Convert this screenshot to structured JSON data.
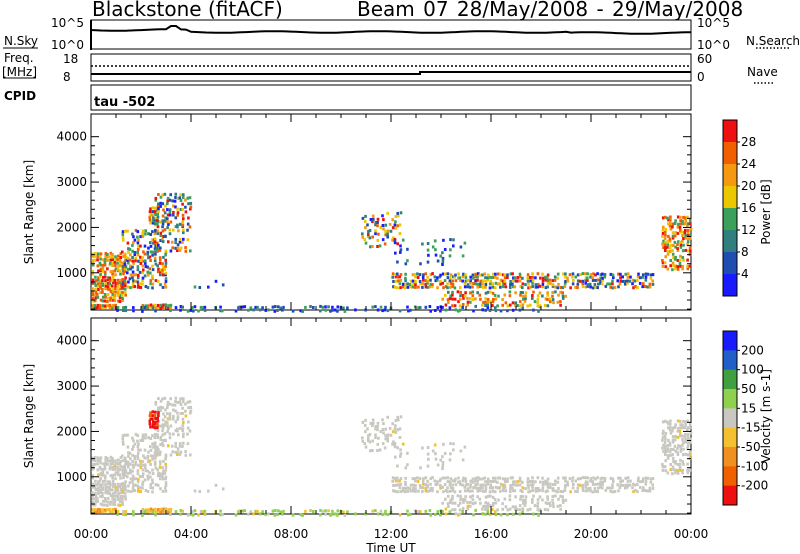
{
  "header": {
    "station": "Blackstone (fitACF)",
    "beam_date": "Beam 07  28/May/2008 - 29/May/2008"
  },
  "top_panels": {
    "nsky_label": "N.Sky",
    "nsky_ticks": [
      "10^5",
      "10^0"
    ],
    "nsearch_label": "N.Search",
    "nsearch_ticks": [
      "10^5",
      "10^0"
    ],
    "freq_label": "Freq.",
    "freq_unit": "[MHz]",
    "freq_ticks": [
      "18",
      "8"
    ],
    "nave_label": "Nave",
    "nave_ticks": [
      "60",
      "0"
    ],
    "cpid_label": "CPID",
    "cpid_value": "tau -502"
  },
  "chart_data": [
    {
      "type": "heatmap",
      "name": "power",
      "ylabel": "Slant Range [km]",
      "xlabel": "Time UT",
      "x_ticks": [
        "00:00",
        "04:00",
        "08:00",
        "12:00",
        "16:00",
        "20:00",
        "00:00"
      ],
      "x_range_hours": [
        0,
        24
      ],
      "ylim": [
        180,
        4500
      ],
      "y_ticks": [
        1000,
        2000,
        3000,
        4000
      ],
      "colorbar_label": "Power [dB]",
      "colorbar_ticks": [
        4,
        8,
        12,
        16,
        20,
        24,
        28
      ],
      "colorbar_range": [
        0,
        32
      ],
      "colors": [
        "#1a1aff",
        "#1f4eb0",
        "#2f7f7f",
        "#3aa05a",
        "#ecc700",
        "#f59a10",
        "#f06000",
        "#ee1010"
      ]
    },
    {
      "type": "heatmap",
      "name": "velocity",
      "ylabel": "Slant Range [km]",
      "xlabel": "Time UT",
      "x_ticks": [
        "00:00",
        "04:00",
        "08:00",
        "12:00",
        "16:00",
        "20:00",
        "00:00"
      ],
      "x_range_hours": [
        0,
        24
      ],
      "ylim": [
        180,
        4500
      ],
      "y_ticks": [
        1000,
        2000,
        3000,
        4000
      ],
      "colorbar_label": "Velocity [m s-1]",
      "colorbar_ticks": [
        "200",
        "100",
        "50",
        "15",
        "-15",
        "-50",
        "-100",
        "-200"
      ],
      "colors": [
        "#1a1aff",
        "#2060c8",
        "#40a040",
        "#8fd04f",
        "#c8c8c0",
        "#f4c030",
        "#f09020",
        "#f06000",
        "#ee1010"
      ]
    }
  ],
  "x_axis_title": "Time UT"
}
